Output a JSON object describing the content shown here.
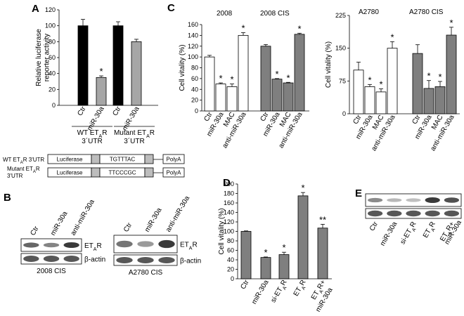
{
  "panel_labels": [
    "A",
    "B",
    "C",
    "D",
    "E"
  ],
  "colors": {
    "black": "#000000",
    "light_gray": "#a6a6a6",
    "dark_gray": "#7f7f7f",
    "white": "#ffffff",
    "gel_band": "#3a3a3a"
  },
  "chart_data": [
    {
      "id": "A",
      "type": "bar",
      "ylabel": "Relative luciferase reporter activity",
      "ylim": [
        0,
        120
      ],
      "yticks": [
        0,
        20,
        40,
        60,
        80,
        100,
        120
      ],
      "categories": [
        "Ctr",
        "miR-30a",
        "Ctr",
        "miR-30a"
      ],
      "values": [
        100,
        35,
        100,
        80
      ],
      "errors": [
        8,
        2,
        5,
        3
      ],
      "fills": [
        "black",
        "light_gray",
        "black",
        "light_gray"
      ],
      "significance": [
        "",
        "*",
        "",
        ""
      ],
      "group_labels": [
        "WT ET",
        "Mutant ET"
      ],
      "group_labels_sub": [
        "A",
        "A"
      ],
      "group_labels_tail": [
        "R",
        "R"
      ],
      "group_labels_line2": [
        "3´UTR",
        "3´UTR"
      ]
    },
    {
      "id": "C-2008",
      "type": "bar",
      "ylabel": "Cell vitality (%)",
      "ylim": [
        0,
        160
      ],
      "yticks": [
        0,
        20,
        40,
        60,
        80,
        100,
        120,
        140,
        160
      ],
      "groups": [
        "2008",
        "2008 CIS"
      ],
      "categories": [
        "Ctr",
        "miR-30a",
        "MAC",
        "anti-miR-30a",
        "Ctr",
        "miR-30a",
        "MAC",
        "anti-miR-30a"
      ],
      "values": [
        100,
        50,
        45,
        140,
        120,
        59,
        52,
        142
      ],
      "errors": [
        3,
        2,
        5,
        5,
        3,
        1,
        1,
        2
      ],
      "fills": [
        "white",
        "white",
        "white",
        "white",
        "dark_gray",
        "dark_gray",
        "dark_gray",
        "dark_gray"
      ],
      "significance": [
        "",
        "*",
        "*",
        "*",
        "",
        "*",
        "*",
        "*"
      ]
    },
    {
      "id": "C-A2780",
      "type": "bar",
      "ylabel": "Cell vitality (%)",
      "ylim": [
        0,
        225
      ],
      "yticks": [
        0,
        75,
        150,
        225
      ],
      "groups": [
        "A2780",
        "A2780 CIS"
      ],
      "categories": [
        "Ctr",
        "miR-30a",
        "MAC",
        "anti-miR-30a",
        "Ctr",
        "miR-30a",
        "MAC",
        "anti-miR-30a"
      ],
      "values": [
        100,
        62,
        50,
        150,
        138,
        58,
        62,
        180
      ],
      "errors": [
        18,
        5,
        7,
        15,
        20,
        18,
        12,
        18
      ],
      "fills": [
        "white",
        "white",
        "white",
        "white",
        "dark_gray",
        "dark_gray",
        "dark_gray",
        "dark_gray"
      ],
      "significance": [
        "",
        "*",
        "*",
        "*",
        "",
        "*",
        "*",
        "*"
      ]
    },
    {
      "id": "D",
      "type": "bar",
      "ylabel": "Cell vitality (%)",
      "ylim": [
        0,
        200
      ],
      "yticks": [
        0,
        20,
        40,
        60,
        80,
        100,
        120,
        140,
        160,
        180,
        200
      ],
      "categories": [
        "Ctr",
        "miR-30a",
        "si-ETAR",
        "ETAR",
        "ETAR+ miR-30a"
      ],
      "values": [
        100,
        45,
        51,
        175,
        107
      ],
      "errors": [
        1,
        1,
        5,
        7,
        8
      ],
      "fills": [
        "dark_gray",
        "dark_gray",
        "dark_gray",
        "dark_gray",
        "dark_gray"
      ],
      "significance": [
        "",
        "*",
        "*",
        "*",
        "**"
      ]
    }
  ],
  "constructs": {
    "rows": [
      {
        "label": "WT ET",
        "label_sub": "A",
        "label_tail": "R 3'UTR",
        "label_line2": "",
        "luciferase": "Luciferase",
        "site": "TGTTTAC",
        "polya": "PolyA"
      },
      {
        "label": "Mutant ET",
        "label_sub": "A",
        "label_tail": "R",
        "label_line2": "3'UTR",
        "luciferase": "Luciferase",
        "site": "TTCCCGC",
        "polya": "PolyA"
      }
    ]
  },
  "blots_b": [
    {
      "lanes": [
        "Ctr",
        "miR-30a",
        "anti-miR-30a"
      ],
      "band_main": "ET",
      "band_main_sub": "A",
      "band_main_tail": "R",
      "band_ctrl": "β-actin",
      "caption": "2008 CIS",
      "intensity": [
        0.7,
        0.5,
        1.0
      ]
    },
    {
      "lanes": [
        "Ctr",
        "miR-30a",
        "anti-miR-30a"
      ],
      "band_main": "ET",
      "band_main_sub": "A",
      "band_main_tail": "R",
      "band_ctrl": "β-actin",
      "caption": "A2780 CIS",
      "intensity": [
        0.6,
        0.35,
        1.0
      ]
    }
  ],
  "blot_e": {
    "lanes": [
      "Ctr",
      "miR-30a",
      "si-ET",
      "ET",
      "ET",
      "miR-30a"
    ],
    "lane_subs": [
      "",
      "",
      "A",
      "A",
      "A",
      ""
    ],
    "lane_tails": [
      "",
      "",
      "R",
      "R",
      "R+",
      ""
    ],
    "band_main": "ET",
    "band_main_sub": "A",
    "band_main_tail": "R",
    "band_ctrl": "β-actin",
    "intensity": [
      0.45,
      0.15,
      0.1,
      1.0,
      0.85
    ]
  }
}
